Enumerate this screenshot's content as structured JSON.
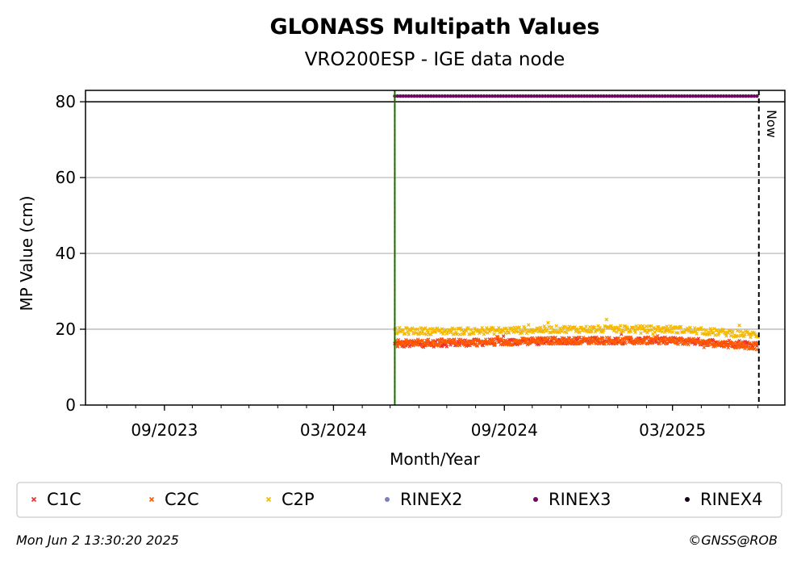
{
  "chart_data": {
    "type": "scatter",
    "title": "GLONASS Multipath Values",
    "subtitle": "VRO200ESP - IGE data node",
    "xlabel": "Month/Year",
    "ylabel": "MP Value (cm)",
    "xlim": [
      "2023-06-08",
      "2025-06-30"
    ],
    "ylim": [
      0,
      83
    ],
    "x_ticks": [
      {
        "date": "2023-09-01",
        "label": "09/2023"
      },
      {
        "date": "2024-03-01",
        "label": "03/2024"
      },
      {
        "date": "2024-09-01",
        "label": "09/2024"
      },
      {
        "date": "2025-03-01",
        "label": "03/2025"
      }
    ],
    "y_ticks": [
      0,
      20,
      40,
      60,
      80
    ],
    "grid": "horizontal",
    "reference_lines": {
      "horizontal_y": 80,
      "start_date": "2024-05-06",
      "now_date": "2025-06-02",
      "now_label": "Now"
    },
    "series": [
      {
        "name": "C1C",
        "color": "#e8312a",
        "marker": "x",
        "approx_value": 16,
        "points": [
          [
            "2024-05-06",
            16
          ],
          [
            "2024-08-01",
            16.5
          ],
          [
            "2024-11-01",
            17
          ],
          [
            "2025-01-01",
            17
          ],
          [
            "2025-03-01",
            17
          ],
          [
            "2025-06-01",
            16
          ]
        ]
      },
      {
        "name": "C2C",
        "color": "#ff5a00",
        "marker": "x",
        "approx_value": 16.5,
        "points": [
          [
            "2024-05-06",
            16.5
          ],
          [
            "2024-08-01",
            16.5
          ],
          [
            "2024-11-01",
            17
          ],
          [
            "2025-01-01",
            17
          ],
          [
            "2025-03-01",
            17
          ],
          [
            "2025-06-01",
            15.5
          ]
        ]
      },
      {
        "name": "C2P",
        "color": "#f5b800",
        "marker": "x",
        "approx_value": 19.5,
        "points": [
          [
            "2024-05-06",
            19.5
          ],
          [
            "2024-08-01",
            19.5
          ],
          [
            "2024-11-01",
            20
          ],
          [
            "2025-01-01",
            20
          ],
          [
            "2025-03-01",
            20
          ],
          [
            "2025-06-01",
            18.5
          ]
        ]
      },
      {
        "name": "RINEX2",
        "color": "#7b7fc4",
        "marker": "o",
        "approx_value": null,
        "points": []
      },
      {
        "name": "RINEX3",
        "color": "#6b0a5e",
        "marker": "o",
        "approx_value": 81.5,
        "points": [
          [
            "2024-05-06",
            81.5
          ],
          [
            "2025-06-01",
            81.5
          ]
        ]
      },
      {
        "name": "RINEX4",
        "color": "#1a001a",
        "marker": "o",
        "approx_value": null,
        "points": []
      }
    ],
    "legend_position": "bottom"
  },
  "footer": {
    "timestamp": "Mon Jun  2 13:30:20 2025",
    "copyright": "©GNSS@ROB"
  }
}
